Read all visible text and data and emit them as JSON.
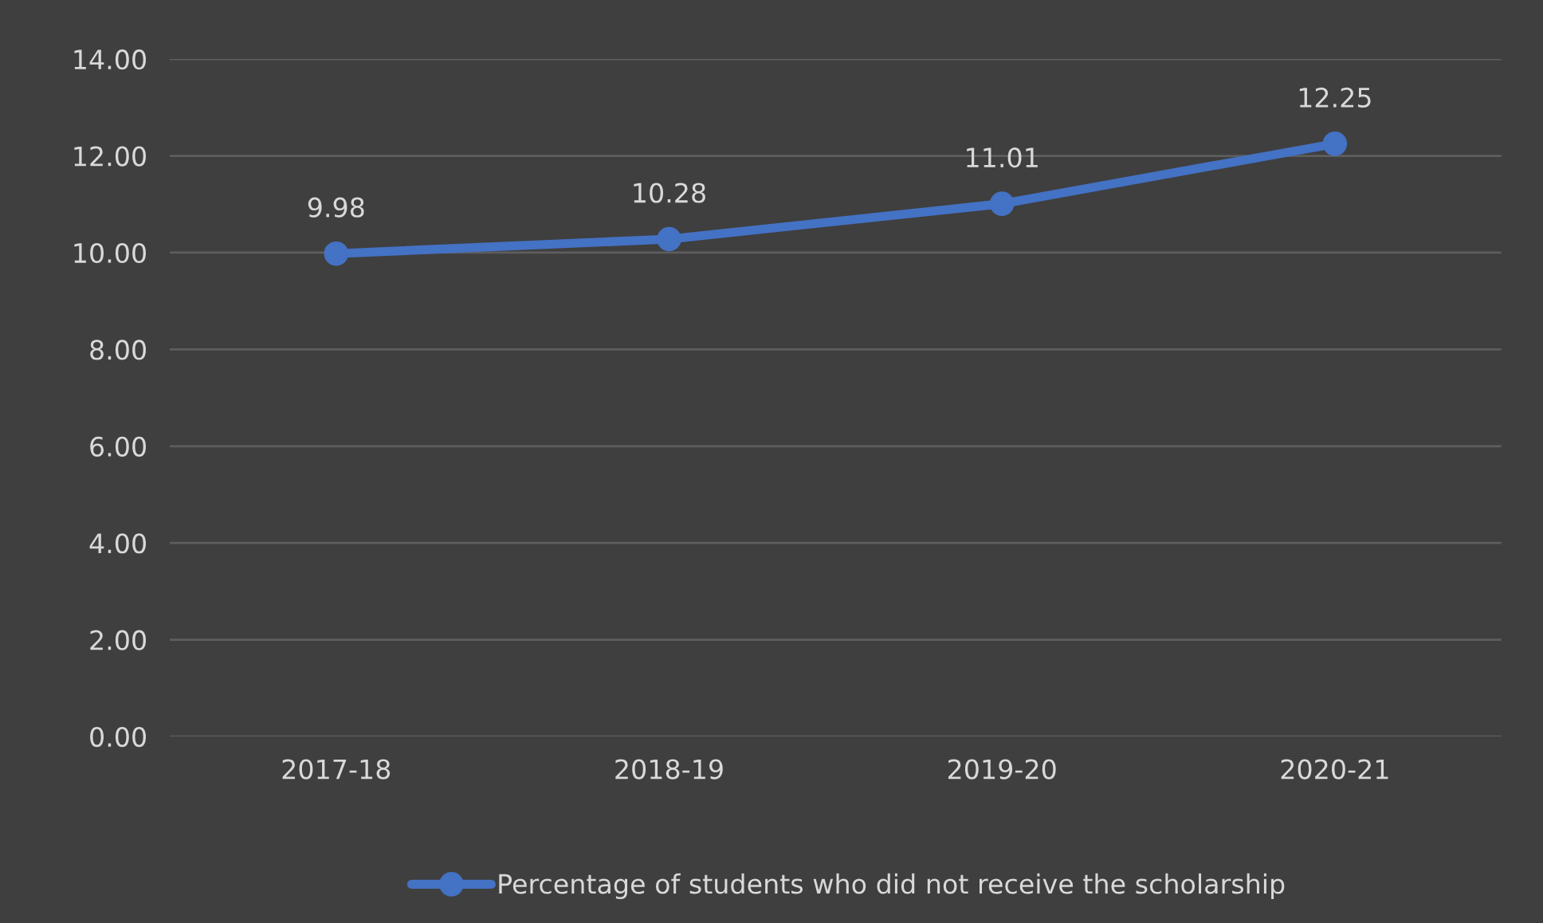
{
  "chart_data": {
    "type": "line",
    "categories": [
      "2017-18",
      "2018-19",
      "2019-20",
      "2020-21"
    ],
    "series": [
      {
        "name": "Percentage of students who did not receive the scholarship",
        "color": "#4472c4",
        "values": [
          9.98,
          10.28,
          11.01,
          12.25
        ]
      }
    ],
    "ylim": [
      0,
      14
    ],
    "yticks": [
      {
        "value": 0,
        "label": "0.00"
      },
      {
        "value": 2,
        "label": "2.00"
      },
      {
        "value": 4,
        "label": "4.00"
      },
      {
        "value": 6,
        "label": "6.00"
      },
      {
        "value": 8,
        "label": "8.00"
      },
      {
        "value": 10,
        "label": "10.00"
      },
      {
        "value": 12,
        "label": "12.00"
      },
      {
        "value": 14,
        "label": "14.00"
      }
    ],
    "grid": "y",
    "legend": "bottom",
    "marker": "circle",
    "line_style": "solid",
    "data_labels": true
  }
}
